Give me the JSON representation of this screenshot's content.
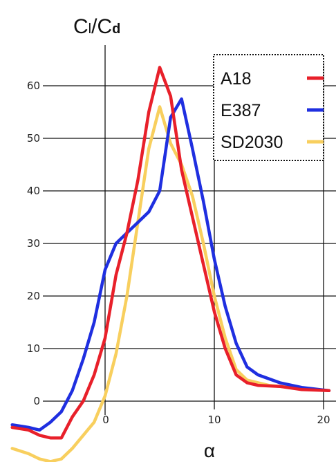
{
  "chart_data": {
    "type": "line",
    "title": "",
    "ylabel": {
      "main": "C",
      "sub1": "l",
      "sep": "/",
      "main2": "C",
      "sub2": "d"
    },
    "xlabel": "α",
    "xlim": [
      -9,
      21
    ],
    "ylim": [
      -11,
      70
    ],
    "x_ticks": [
      0,
      10,
      20
    ],
    "y_ticks": [
      0,
      10,
      20,
      30,
      40,
      50,
      60
    ],
    "grid": true,
    "legend_position": "top-right",
    "series": [
      {
        "name": "A18",
        "color": "#e8202a",
        "points": [
          [
            -8.5,
            -5
          ],
          [
            -7,
            -5.5
          ],
          [
            -6,
            -6.5
          ],
          [
            -5,
            -7
          ],
          [
            -4,
            -7
          ],
          [
            -3,
            -3
          ],
          [
            -2,
            0
          ],
          [
            -1,
            5
          ],
          [
            0,
            12
          ],
          [
            1,
            24
          ],
          [
            2,
            32
          ],
          [
            3,
            42
          ],
          [
            4,
            55
          ],
          [
            5,
            63.5
          ],
          [
            6,
            58
          ],
          [
            7,
            44
          ],
          [
            8,
            35
          ],
          [
            9,
            26
          ],
          [
            10,
            17
          ],
          [
            11,
            10
          ],
          [
            12,
            5
          ],
          [
            13,
            3.5
          ],
          [
            14,
            3
          ],
          [
            16,
            2.8
          ],
          [
            18,
            2.2
          ],
          [
            20.5,
            2
          ]
        ]
      },
      {
        "name": "E387",
        "color": "#1f2fe0",
        "points": [
          [
            -8.5,
            -4.5
          ],
          [
            -7,
            -5
          ],
          [
            -6,
            -5.5
          ],
          [
            -5,
            -4
          ],
          [
            -4,
            -2
          ],
          [
            -3,
            2
          ],
          [
            -2,
            8
          ],
          [
            -1,
            15
          ],
          [
            0,
            25
          ],
          [
            1,
            30
          ],
          [
            2,
            32
          ],
          [
            3,
            34
          ],
          [
            4,
            36
          ],
          [
            5,
            40
          ],
          [
            6,
            54
          ],
          [
            7,
            57.5
          ],
          [
            8,
            48
          ],
          [
            9,
            38
          ],
          [
            10,
            27
          ],
          [
            11,
            18
          ],
          [
            12,
            11
          ],
          [
            13,
            6.5
          ],
          [
            14,
            5
          ],
          [
            16,
            3.5
          ],
          [
            18,
            2.6
          ],
          [
            20.5,
            2
          ]
        ]
      },
      {
        "name": "SD2030",
        "color": "#f8cf5e",
        "points": [
          [
            -8.5,
            -9
          ],
          [
            -7,
            -10
          ],
          [
            -6,
            -11
          ],
          [
            -5,
            -11.5
          ],
          [
            -4,
            -11
          ],
          [
            -3,
            -9
          ],
          [
            -2,
            -6.5
          ],
          [
            -1,
            -4
          ],
          [
            0,
            1
          ],
          [
            1,
            9
          ],
          [
            2,
            20
          ],
          [
            3,
            34
          ],
          [
            4,
            48
          ],
          [
            5,
            56
          ],
          [
            6,
            49
          ],
          [
            7,
            45
          ],
          [
            8,
            39
          ],
          [
            9,
            30
          ],
          [
            10,
            20
          ],
          [
            11,
            12
          ],
          [
            12,
            6
          ],
          [
            13,
            4
          ],
          [
            15,
            3
          ],
          [
            18,
            2.4
          ],
          [
            20.5,
            2
          ]
        ]
      }
    ]
  }
}
